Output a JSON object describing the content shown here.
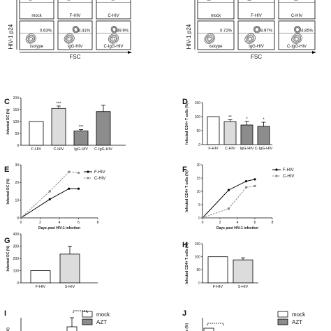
{
  "chart_data": [
    {
      "panel": "",
      "type": "other",
      "subtype": "flow cytometry contour plots",
      "ylabel": "HIV-1 p24",
      "xlabel": "FSC",
      "plots": [
        {
          "label": "mock",
          "pct": ""
        },
        {
          "label": "F-HIV",
          "pct": ""
        },
        {
          "label": "C-HIV",
          "pct": ""
        },
        {
          "label": "isotype",
          "pct": "0.63%"
        },
        {
          "label": "IgG-HIV",
          "pct": "8.41%"
        },
        {
          "label": "C-IgG-HIV",
          "pct": "39.9%"
        }
      ]
    },
    {
      "panel": "",
      "type": "other",
      "subtype": "flow cytometry contour plots",
      "ylabel": "HIV-1 p24",
      "xlabel": "FSC",
      "plots": [
        {
          "label": "mock",
          "pct": ""
        },
        {
          "label": "F-HIV",
          "pct": ""
        },
        {
          "label": "C-HIV",
          "pct": ""
        },
        {
          "label": "isotype",
          "pct": "0.72%"
        },
        {
          "label": "IgG-HIV",
          "pct": "8.97%"
        },
        {
          "label": "C-IgG-HIV",
          "pct": "4.85%"
        }
      ]
    },
    {
      "panel": "C",
      "type": "bar",
      "ylabel": "Infected DC (%)",
      "yticks": [
        "0",
        "50",
        "100",
        "150",
        "200"
      ],
      "ylim": [
        0,
        200
      ],
      "categories": [
        "F-HIV",
        "C-HIV",
        "IgG-HIV",
        "C-IgG-HIV"
      ],
      "values": [
        100,
        155,
        60,
        142
      ],
      "errors": [
        0,
        10,
        6,
        27
      ],
      "fills": [
        "#ffffff",
        "#dcdcdc",
        "#8c8c8c",
        "#8c8c8c"
      ],
      "annotations": [
        "",
        "***",
        "***",
        ""
      ]
    },
    {
      "panel": "D",
      "type": "bar",
      "ylabel": "Infected CD4+ T cells (%)",
      "yticks": [
        "0",
        "50",
        "100",
        "150"
      ],
      "ylim": [
        0,
        150
      ],
      "categories": [
        "F-HIV",
        "C-HIV",
        "IgG-HIV",
        "C-IgG-HIV"
      ],
      "values": [
        100,
        82,
        70,
        65
      ],
      "errors": [
        0,
        7,
        13,
        15
      ],
      "fills": [
        "#ffffff",
        "#dcdcdc",
        "#8c8c8c",
        "#8c8c8c"
      ],
      "annotations": [
        "",
        "**",
        "*",
        "*"
      ]
    },
    {
      "panel": "E",
      "type": "line",
      "ylabel": "Infected DC (%)",
      "xlabel": "Days post HIV-1 infection",
      "xticks": [
        "0",
        "2",
        "4",
        "6",
        "8"
      ],
      "xlim": [
        0,
        8
      ],
      "yticks": [
        "0",
        "10",
        "20",
        "30"
      ],
      "ylim": [
        0,
        30
      ],
      "series": [
        {
          "name": "F-HIV",
          "x": [
            0,
            3,
            5,
            6
          ],
          "y": [
            0,
            10.5,
            16.5,
            16.5
          ],
          "color": "#000000",
          "dash": false,
          "marker": "circle"
        },
        {
          "name": "C-HIV",
          "x": [
            0,
            3,
            5,
            6
          ],
          "y": [
            0,
            15,
            26,
            25.5
          ],
          "color": "#888888",
          "dash": true,
          "marker": "square"
        }
      ]
    },
    {
      "panel": "F",
      "type": "line",
      "ylabel": "Infected CD4+ T cells (%)",
      "xlabel": "Days post HIV-1 infection",
      "xticks": [
        "0",
        "2",
        "4",
        "6",
        "8"
      ],
      "xlim": [
        0,
        8
      ],
      "yticks": [
        "0",
        "5",
        "10",
        "15",
        "20"
      ],
      "ylim": [
        0,
        20
      ],
      "series": [
        {
          "name": "F-HIV",
          "x": [
            0,
            3,
            5,
            6
          ],
          "y": [
            0,
            10.5,
            13.8,
            14.5
          ],
          "color": "#000000",
          "dash": false,
          "marker": "circle"
        },
        {
          "name": "C-HIV",
          "x": [
            0,
            3,
            5,
            6
          ],
          "y": [
            0,
            3.5,
            11.5,
            12
          ],
          "color": "#888888",
          "dash": true,
          "marker": "square"
        }
      ]
    },
    {
      "panel": "G",
      "type": "bar",
      "ylabel": "Infected DC (%)",
      "yticks": [
        "0",
        "100",
        "200",
        "300",
        "400"
      ],
      "ylim": [
        0,
        400
      ],
      "categories": [
        "F-HIV",
        "S-HIV"
      ],
      "values": [
        100,
        235
      ],
      "errors": [
        0,
        65
      ],
      "fills": [
        "#ffffff",
        "#dcdcdc"
      ],
      "annotations": [
        "",
        ""
      ]
    },
    {
      "panel": "H",
      "type": "bar",
      "ylabel": "Infected CD4+ T cells (%)",
      "yticks": [
        "0",
        "50",
        "100",
        "150"
      ],
      "ylim": [
        0,
        150
      ],
      "categories": [
        "F-HIV",
        "S-HIV"
      ],
      "values": [
        100,
        88
      ],
      "errors": [
        0,
        8
      ],
      "fills": [
        "#ffffff",
        "#dcdcdc"
      ],
      "annotations": [
        "",
        ""
      ]
    },
    {
      "panel": "I",
      "type": "bar",
      "ylabel": "(%)",
      "legend": [
        {
          "name": "mock",
          "fill": "#ffffff"
        },
        {
          "name": "AZT",
          "fill": "#8c8c8c"
        }
      ]
    },
    {
      "panel": "J",
      "type": "bar",
      "ylabel": "cells (%)",
      "legend": [
        {
          "name": "mock",
          "fill": "#ffffff"
        },
        {
          "name": "AZT",
          "fill": "#8c8c8c"
        }
      ]
    }
  ]
}
